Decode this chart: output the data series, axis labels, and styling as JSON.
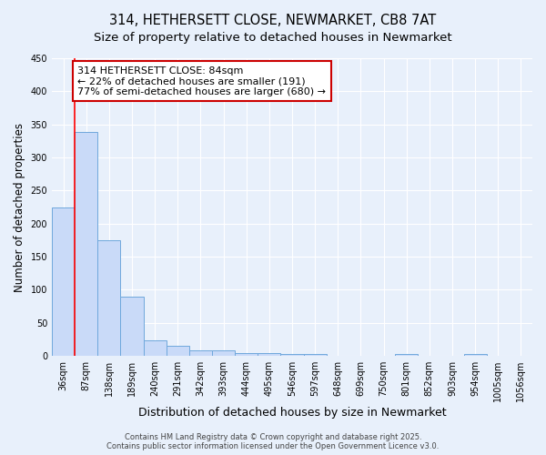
{
  "title": "314, HETHERSETT CLOSE, NEWMARKET, CB8 7AT",
  "subtitle": "Size of property relative to detached houses in Newmarket",
  "xlabel": "Distribution of detached houses by size in Newmarket",
  "ylabel": "Number of detached properties",
  "bin_labels": [
    "36sqm",
    "87sqm",
    "138sqm",
    "189sqm",
    "240sqm",
    "291sqm",
    "342sqm",
    "393sqm",
    "444sqm",
    "495sqm",
    "546sqm",
    "597sqm",
    "648sqm",
    "699sqm",
    "750sqm",
    "801sqm",
    "852sqm",
    "903sqm",
    "954sqm",
    "1005sqm",
    "1056sqm"
  ],
  "bar_values": [
    225,
    338,
    175,
    90,
    23,
    16,
    8,
    8,
    5,
    5,
    3,
    3,
    0,
    0,
    0,
    3,
    0,
    0,
    3,
    0,
    0
  ],
  "bar_color": "#c9daf8",
  "bar_edge_color": "#6fa8dc",
  "red_line_x": 0.5,
  "annotation_line1": "314 HETHERSETT CLOSE: 84sqm",
  "annotation_line2": "← 22% of detached houses are smaller (191)",
  "annotation_line3": "77% of semi-detached houses are larger (680) →",
  "annotation_box_color": "#ffffff",
  "annotation_box_edge": "#cc0000",
  "background_color": "#e8f0fb",
  "plot_bg_color": "#e8f0fb",
  "ylim": [
    0,
    450
  ],
  "yticks": [
    0,
    50,
    100,
    150,
    200,
    250,
    300,
    350,
    400,
    450
  ],
  "footer_line1": "Contains HM Land Registry data © Crown copyright and database right 2025.",
  "footer_line2": "Contains public sector information licensed under the Open Government Licence v3.0.",
  "title_fontsize": 10.5,
  "subtitle_fontsize": 9.5,
  "xlabel_fontsize": 9,
  "ylabel_fontsize": 8.5,
  "tick_fontsize": 7,
  "annotation_fontsize": 8,
  "footer_fontsize": 6
}
